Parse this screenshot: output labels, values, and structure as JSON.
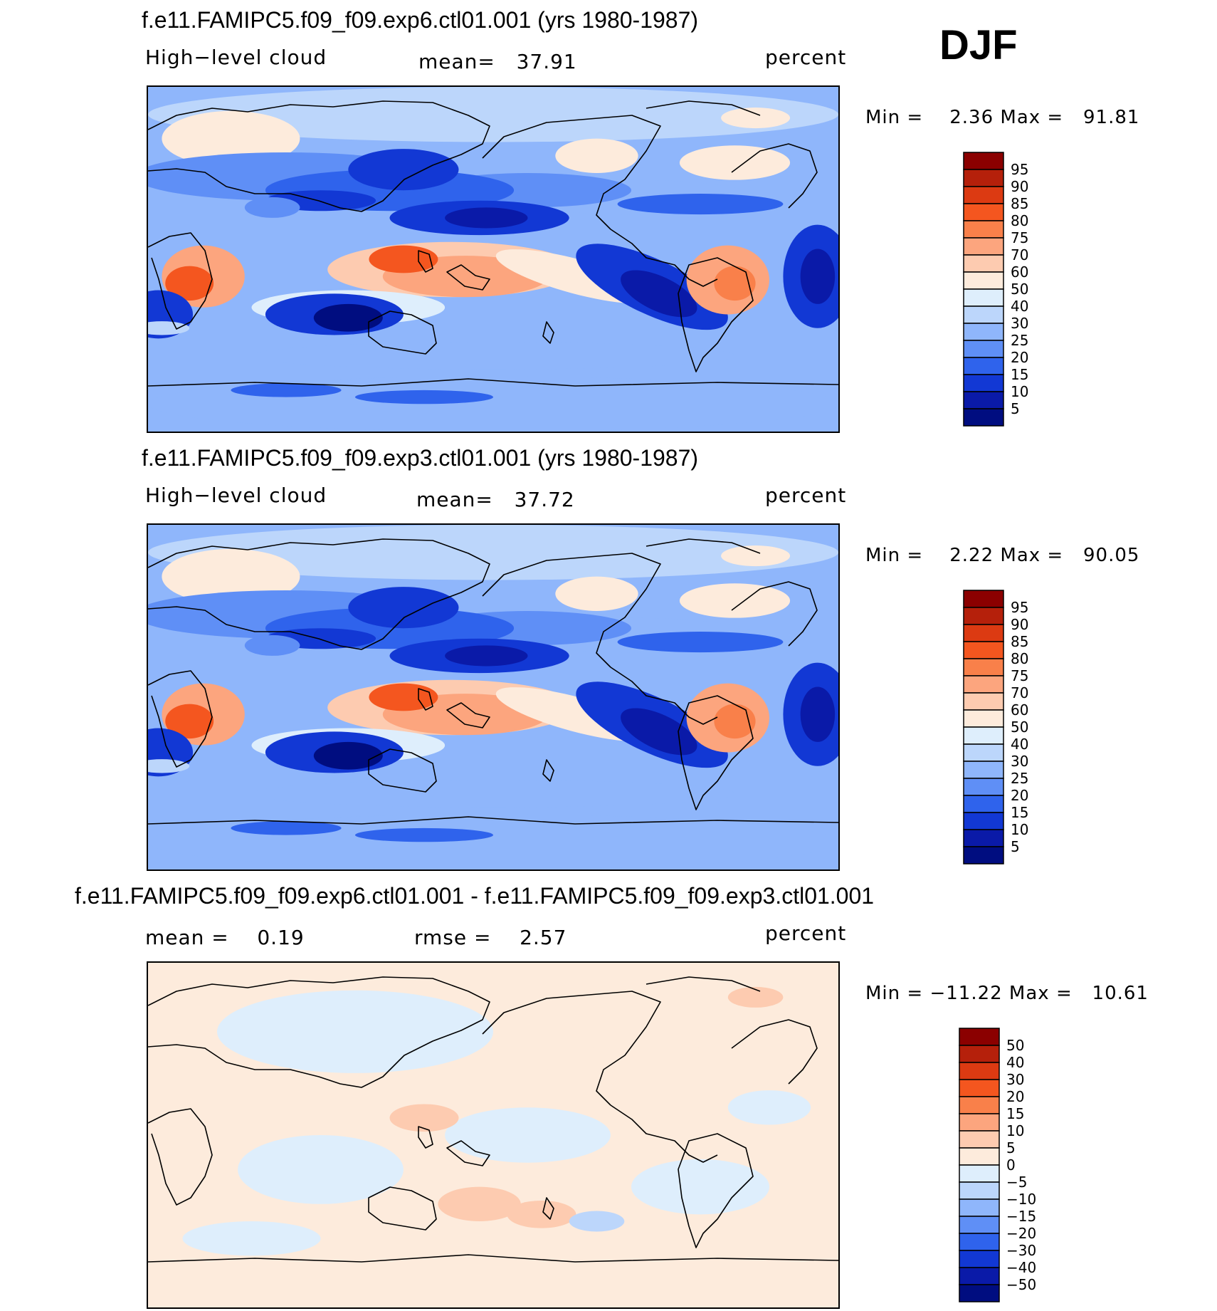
{
  "season": "DJF",
  "panels": [
    {
      "title": "f.e11.FAMIPC5.f09_f09.exp6.ctl01.001 (yrs 1980-1987)",
      "variable": "High−level cloud",
      "mean_text": "mean=   37.91",
      "units": "percent",
      "minmax_text": "Min =    2.36 Max =   91.81"
    },
    {
      "title": "f.e11.FAMIPC5.f09_f09.exp3.ctl01.001 (yrs 1980-1987)",
      "variable": "High−level cloud",
      "mean_text": "mean=   37.72",
      "units": "percent",
      "minmax_text": "Min =    2.22 Max =   90.05"
    },
    {
      "title": "f.e11.FAMIPC5.f09_f09.exp6.ctl01.001 - f.e11.FAMIPC5.f09_f09.exp3.ctl01.001",
      "mean_text": "mean =    0.19",
      "rmse_text": "rmse =    2.57",
      "units": "percent",
      "minmax_text": "Min = −11.22 Max =   10.61"
    }
  ],
  "chart_data": [
    {
      "type": "heatmap",
      "title": "f.e11.FAMIPC5.f09_f09.exp6.ctl01.001 (yrs 1980-1987)",
      "field": "High-level cloud",
      "units": "percent",
      "season": "DJF",
      "mean": 37.91,
      "min": 2.36,
      "max": 91.81,
      "colorbar_levels": [
        "95",
        "90",
        "85",
        "80",
        "75",
        "70",
        "60",
        "50",
        "40",
        "30",
        "25",
        "20",
        "15",
        "10",
        "5"
      ]
    },
    {
      "type": "heatmap",
      "title": "f.e11.FAMIPC5.f09_f09.exp3.ctl01.001 (yrs 1980-1987)",
      "field": "High-level cloud",
      "units": "percent",
      "season": "DJF",
      "mean": 37.72,
      "min": 2.22,
      "max": 90.05,
      "colorbar_levels": [
        "95",
        "90",
        "85",
        "80",
        "75",
        "70",
        "60",
        "50",
        "40",
        "30",
        "25",
        "20",
        "15",
        "10",
        "5"
      ]
    },
    {
      "type": "heatmap",
      "title": "f.e11.FAMIPC5.f09_f09.exp6.ctl01.001 - f.e11.FAMIPC5.f09_f09.exp3.ctl01.001",
      "units": "percent",
      "mean": 0.19,
      "rmse": 2.57,
      "min": -11.22,
      "max": 10.61,
      "colorbar_levels": [
        "50",
        "40",
        "30",
        "20",
        "15",
        "10",
        "5",
        "0",
        "−5",
        "−10",
        "−15",
        "−20",
        "−30",
        "−40",
        "−50"
      ]
    }
  ],
  "colors": {
    "abs_scale": [
      "#8b0000",
      "#b5200b",
      "#dc3a12",
      "#f4561f",
      "#f9804a",
      "#fca57e",
      "#fdcbb0",
      "#fdebdc",
      "#deeefc",
      "#bcd6fb",
      "#8fb6fb",
      "#5f8ff6",
      "#2f63ec",
      "#1238d4",
      "#0a1aa8",
      "#000d80"
    ],
    "diff_scale": [
      "#8b0000",
      "#b5200b",
      "#dc3a12",
      "#f4561f",
      "#f9804a",
      "#fca57e",
      "#fdcbb0",
      "#fdebdc",
      "#deeefc",
      "#bcd6fb",
      "#8fb6fb",
      "#5f8ff6",
      "#2f63ec",
      "#1238d4",
      "#0a1aa8",
      "#000d80"
    ],
    "coast": "#000000"
  }
}
